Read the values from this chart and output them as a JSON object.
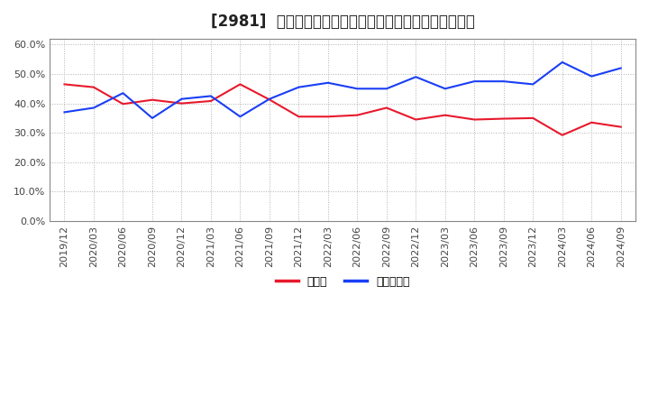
{
  "title": "[2981]  現顔金、有利子負債の総資産に対する比率の推移",
  "x_labels": [
    "2019/12",
    "2020/03",
    "2020/06",
    "2020/09",
    "2020/12",
    "2021/03",
    "2021/06",
    "2021/09",
    "2021/12",
    "2022/03",
    "2022/06",
    "2022/09",
    "2022/12",
    "2023/03",
    "2023/06",
    "2023/09",
    "2023/12",
    "2024/03",
    "2024/06",
    "2024/09"
  ],
  "cash": [
    0.465,
    0.455,
    0.398,
    0.412,
    0.4,
    0.408,
    0.465,
    0.413,
    0.355,
    0.355,
    0.36,
    0.385,
    0.345,
    0.36,
    0.345,
    0.348,
    0.35,
    0.292,
    0.335,
    0.32
  ],
  "debt": [
    0.37,
    0.385,
    0.435,
    0.35,
    0.415,
    0.425,
    0.355,
    0.415,
    0.455,
    0.47,
    0.45,
    0.45,
    0.49,
    0.45,
    0.475,
    0.475,
    0.465,
    0.54,
    0.492,
    0.52
  ],
  "cash_color": "#e8192c",
  "debt_color": "#1a3ef5",
  "bg_color": "#ffffff",
  "plot_bg_color": "#ffffff",
  "grid_color": "#b0b0b0",
  "ylim": [
    0.0,
    0.62
  ],
  "yticks": [
    0.0,
    0.1,
    0.2,
    0.3,
    0.4,
    0.5,
    0.6
  ],
  "legend_cash": "現顔金",
  "legend_debt": "有利子負債",
  "title_fontsize": 12,
  "tick_fontsize": 8,
  "legend_fontsize": 9
}
